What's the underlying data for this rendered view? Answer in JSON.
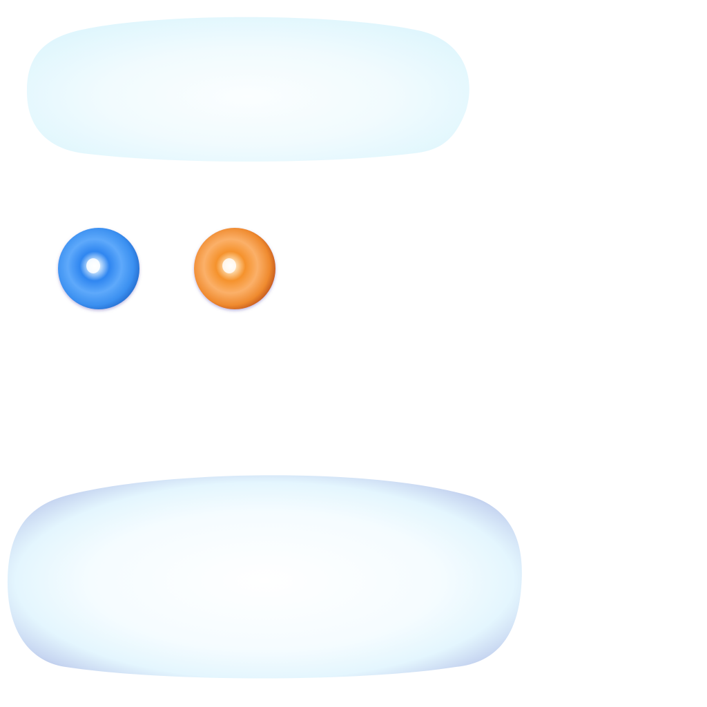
{
  "assets": {
    "top_panel": {
      "icon": "glass-panel-light",
      "fill": "#e3f8fe",
      "center": "#f7fdff"
    },
    "bottom_panel": {
      "icon": "glass-panel-bordered",
      "fill": "#eefaff",
      "center": "#ffffff",
      "rim": "#aebde6"
    },
    "blue_orb": {
      "icon": "blue-orb",
      "base": "#2f86f0",
      "highlight": "#ffffff",
      "rim": "#1f66c8"
    },
    "orange_orb": {
      "icon": "orange-orb",
      "base": "#f08a28",
      "highlight": "#fff3e0",
      "rim": "#b8491a"
    }
  }
}
